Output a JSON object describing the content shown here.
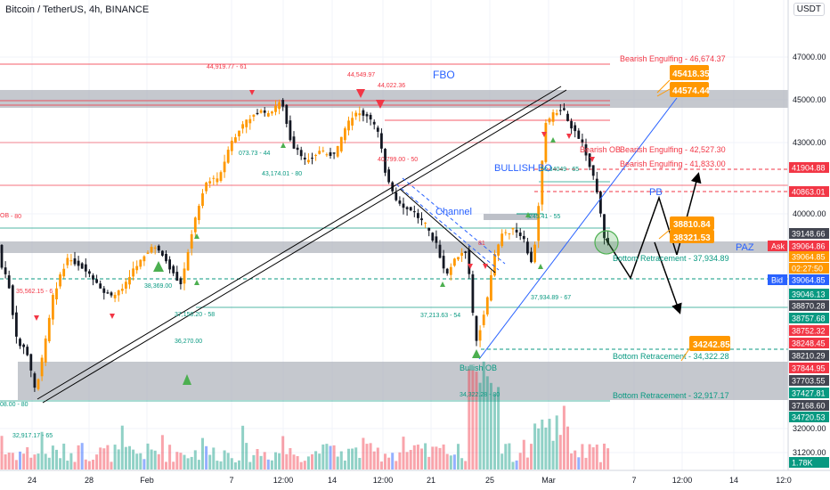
{
  "header": {
    "symbol_title": "Bitcoin / TetherUS, 4h, BINANCE",
    "currency": "USDT"
  },
  "chart_data": {
    "type": "candlestick",
    "x_tick_labels": [
      "24",
      "28",
      "Feb",
      "7",
      "12:00",
      "14",
      "12:00",
      "21",
      "25",
      "Mar",
      "7",
      "12:00",
      "14",
      "12:0"
    ],
    "y_axis_labels": [
      "47000.00",
      "45000.00",
      "43000.00",
      "40000.00",
      "32000.00",
      "31200.00"
    ],
    "ylim": [
      31200,
      48400
    ],
    "price_tags": [
      {
        "value": "41904.88",
        "kind": "red"
      },
      {
        "value": "40863.01",
        "kind": "red"
      },
      {
        "value": "39148.66",
        "kind": "dark"
      },
      {
        "value": "39064.86",
        "kind": "red",
        "prefix": "Ask"
      },
      {
        "value": "39064.85",
        "kind": "orange"
      },
      {
        "value": "02:27:50",
        "kind": "orange"
      },
      {
        "value": "39064.85",
        "kind": "blue",
        "prefix": "Bid"
      },
      {
        "value": "39046.13",
        "kind": "green"
      },
      {
        "value": "38870.28",
        "kind": "dark"
      },
      {
        "value": "38757.68",
        "kind": "green"
      },
      {
        "value": "38752.32",
        "kind": "red"
      },
      {
        "value": "38248.45",
        "kind": "red"
      },
      {
        "value": "38210.29",
        "kind": "dark"
      },
      {
        "value": "37844.95",
        "kind": "red"
      },
      {
        "value": "37703.55",
        "kind": "dark"
      },
      {
        "value": "37427.81",
        "kind": "green"
      },
      {
        "value": "37168.60",
        "kind": "dark"
      },
      {
        "value": "34720.53",
        "kind": "green"
      },
      {
        "value": "1.78K",
        "kind": "green"
      }
    ],
    "callouts": [
      "45418.35",
      "44574.44",
      "38810.84",
      "38321.53",
      "34242.85"
    ],
    "annotations": {
      "fbo": "FBO",
      "bullish_bo": "BULLISH BO",
      "channel": "Channel",
      "pb": "PB",
      "paz": "PAZ",
      "bullish_ob": "Bullish OB",
      "bearish_ob": "Bearish OB",
      "bearish_engulfing_1": "Bearish Engulfing - 46,674.37",
      "bearish_engulfing_2": "Bearish Engulfing - 42,527.30",
      "bearish_engulfing_3": "Bearish Engulfing - 41,833.00",
      "bottom_retracement_1": "Bottom Retracement - 37,934.89",
      "bottom_retracement_2": "Bottom Retracement - 34,322.28",
      "bottom_retracement_3": "Bottom Retracement - 32,917.17",
      "pivot_44919": "44,919.77 - 61",
      "pivot_44549": "44,549.97",
      "pivot_44022": "44,022.36",
      "pivot_43174": "43,174.01 - 80",
      "pivot_43073": "073.73 - 44",
      "pivot_40799": "40,799.00 - 50",
      "pivot_38369": "38,369.00",
      "pivot_37150": "37,150.20 - 58",
      "pivot_36270": "36,270.00",
      "pivot_35562": "35,562.15 - 6",
      "pivot_37213": "37,213.63 - 54",
      "pivot_37934": "37,934.89 - 67",
      "pivot_39245": ",245.41 - 55",
      "pivot_34322": "34,322.28 - 80",
      "pivot_left_80": "08.00 - 80",
      "pivot_left_ob": "OB",
      "pivot_left_dash80": "- 80",
      "pivot_32917": "32,917.17 - 65",
      "pivot_39181": "81",
      "pivot_mid": ",50,34049 - 65"
    }
  }
}
